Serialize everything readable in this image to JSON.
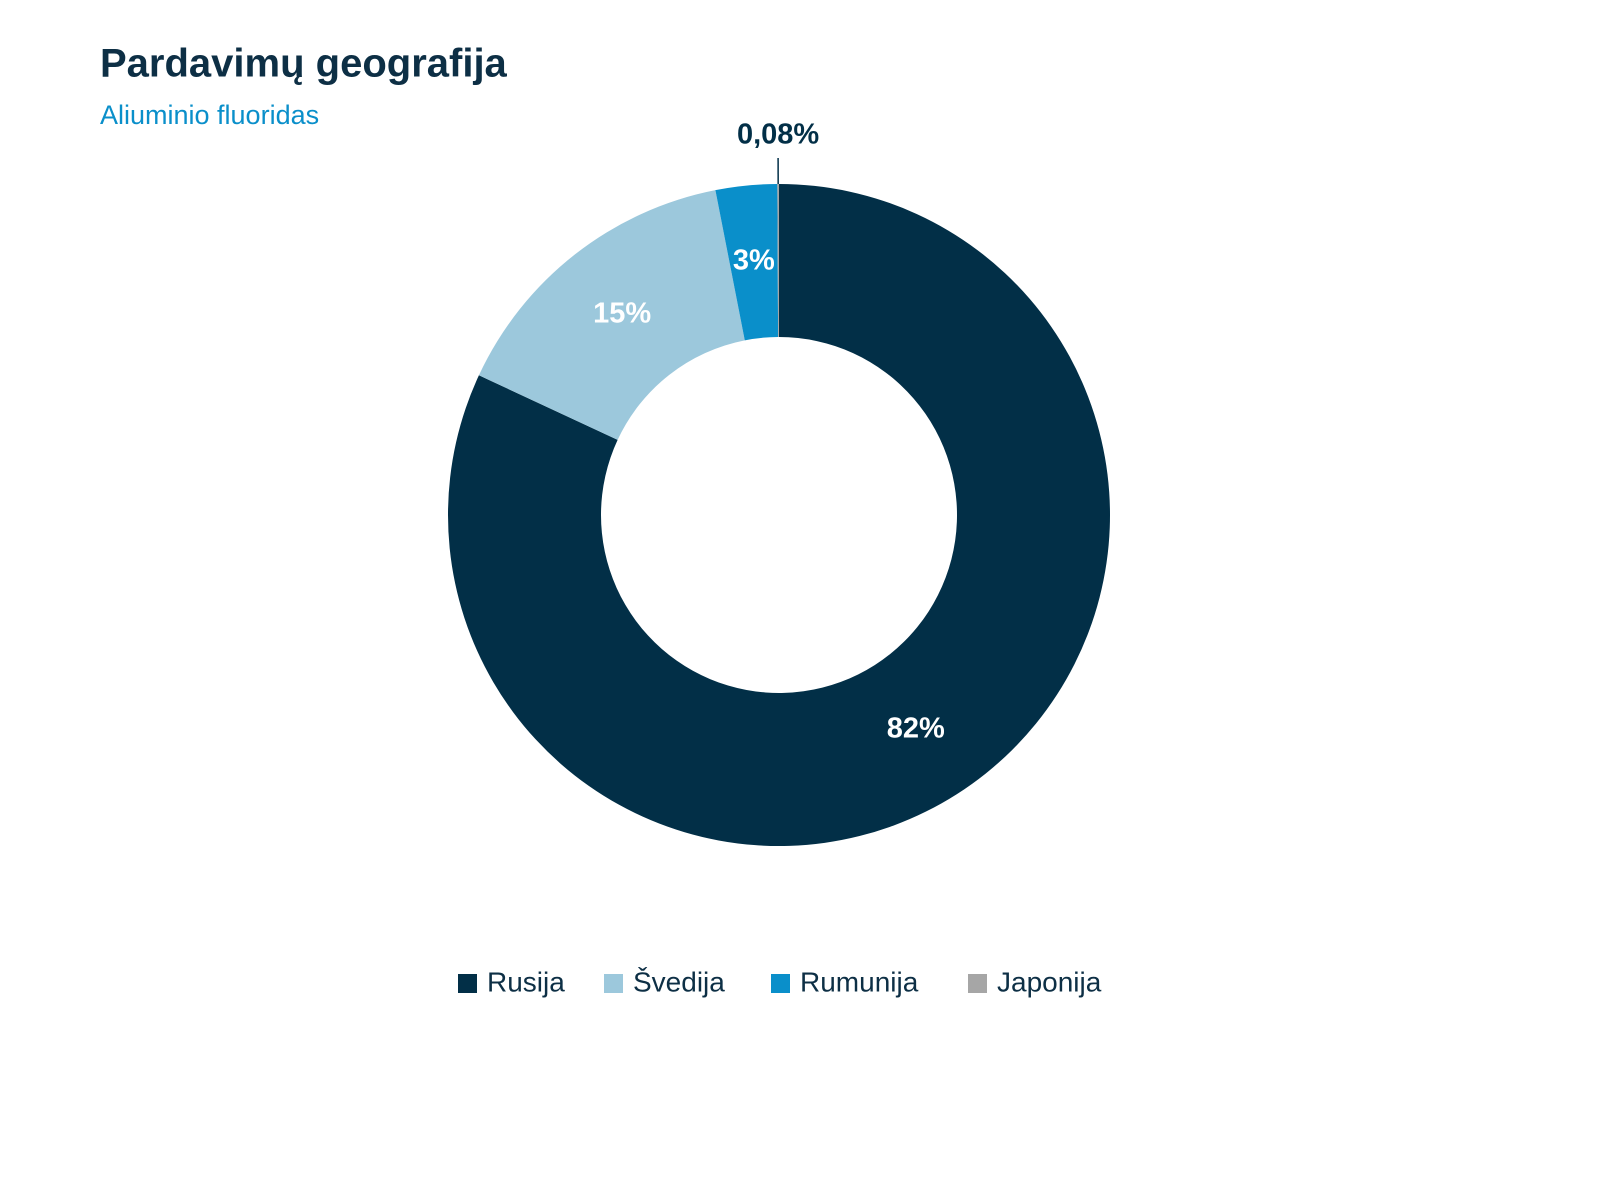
{
  "chart_data": {
    "type": "donut",
    "title": "Pardavimų geografija",
    "subtitle": "Aliuminio fluoridas",
    "categories": [
      "Rusija",
      "Švedija",
      "Rumunija",
      "Japonija"
    ],
    "values": [
      82,
      15,
      3,
      0.08
    ],
    "value_labels": [
      "82%",
      "15%",
      "3%",
      "0,08%"
    ],
    "colors": [
      "#022f47",
      "#9cc8dc",
      "#0a8fca",
      "#a6a6a6"
    ],
    "legend": "bottom"
  }
}
